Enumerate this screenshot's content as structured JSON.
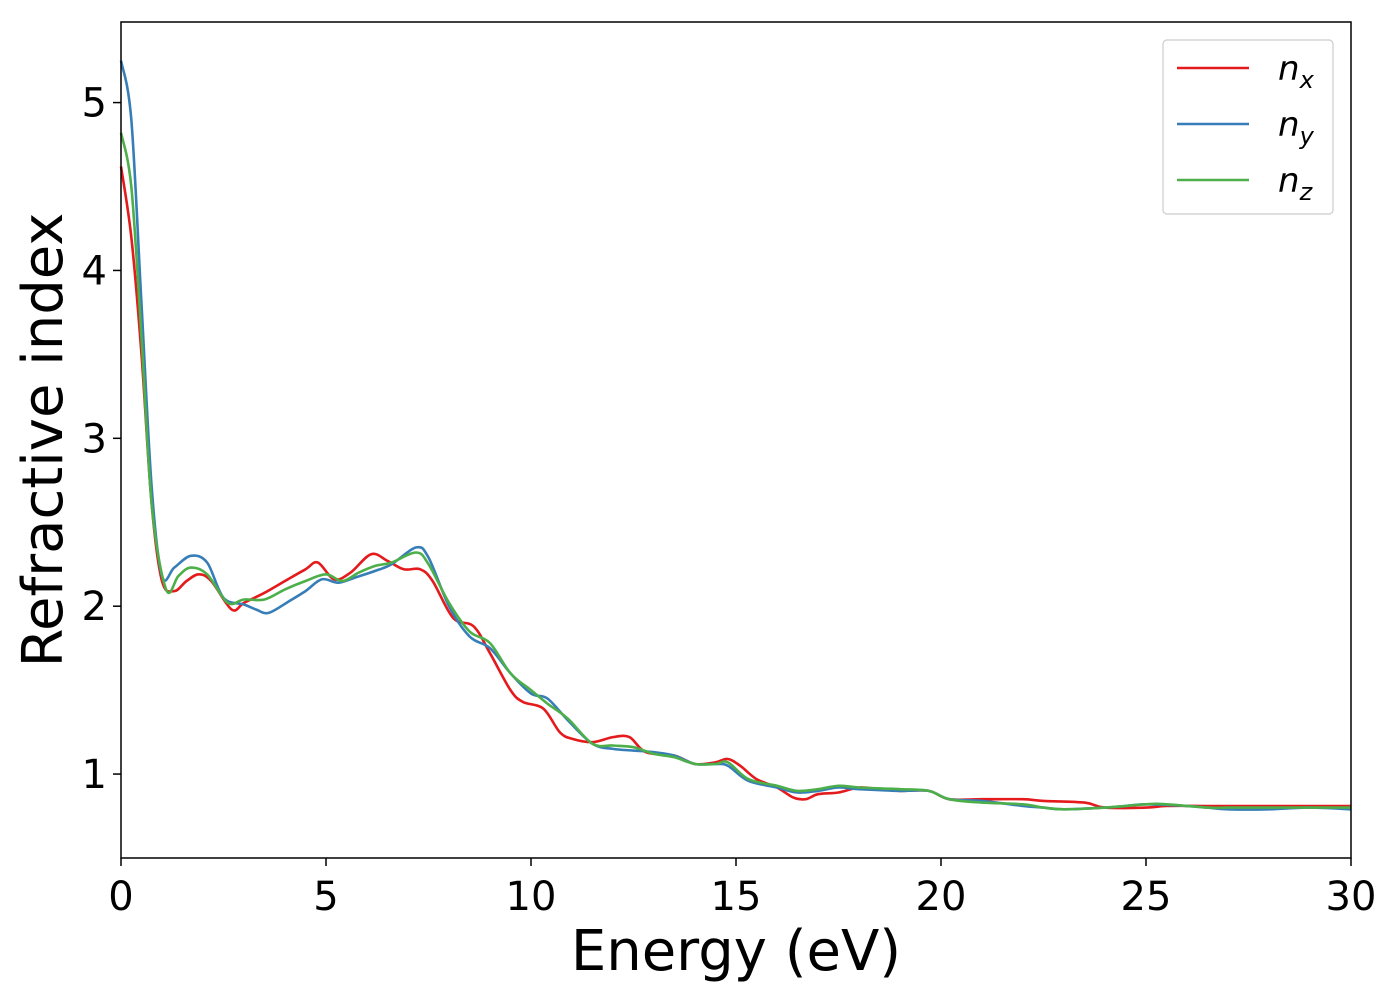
{
  "chart_data": {
    "type": "line",
    "xlabel": "Energy (eV)",
    "ylabel": "Refractive index",
    "xlim": [
      0,
      30
    ],
    "ylim": [
      0.5,
      5.48
    ],
    "xticks": [
      0,
      5,
      10,
      15,
      20,
      25,
      30
    ],
    "yticks": [
      1,
      2,
      3,
      4,
      5
    ],
    "grid": false,
    "legend_position": "top-right",
    "series": [
      {
        "name": "n_x",
        "label_main": "n",
        "label_sub": "x",
        "color": "#e41a1c",
        "points": [
          [
            0,
            4.62
          ],
          [
            0.25,
            4.2
          ],
          [
            0.5,
            3.5
          ],
          [
            0.75,
            2.6
          ],
          [
            1,
            2.15
          ],
          [
            1.3,
            2.09
          ],
          [
            1.6,
            2.15
          ],
          [
            1.9,
            2.19
          ],
          [
            2.2,
            2.15
          ],
          [
            2.7,
            1.98
          ],
          [
            3,
            2.02
          ],
          [
            3.5,
            2.08
          ],
          [
            4,
            2.15
          ],
          [
            4.5,
            2.22
          ],
          [
            4.8,
            2.26
          ],
          [
            5.2,
            2.16
          ],
          [
            5.6,
            2.2
          ],
          [
            6.1,
            2.31
          ],
          [
            6.5,
            2.27
          ],
          [
            6.9,
            2.22
          ],
          [
            7.3,
            2.22
          ],
          [
            7.6,
            2.15
          ],
          [
            8.1,
            1.93
          ],
          [
            8.6,
            1.88
          ],
          [
            9,
            1.72
          ],
          [
            9.5,
            1.5
          ],
          [
            9.8,
            1.43
          ],
          [
            10.3,
            1.39
          ],
          [
            10.7,
            1.25
          ],
          [
            11,
            1.21
          ],
          [
            11.5,
            1.19
          ],
          [
            12,
            1.22
          ],
          [
            12.4,
            1.22
          ],
          [
            12.8,
            1.13
          ],
          [
            13.5,
            1.11
          ],
          [
            14,
            1.06
          ],
          [
            14.5,
            1.07
          ],
          [
            14.8,
            1.09
          ],
          [
            15.1,
            1.05
          ],
          [
            15.5,
            0.97
          ],
          [
            16,
            0.92
          ],
          [
            16.4,
            0.86
          ],
          [
            16.7,
            0.85
          ],
          [
            17,
            0.88
          ],
          [
            17.5,
            0.89
          ],
          [
            18,
            0.92
          ],
          [
            18.5,
            0.91
          ],
          [
            19,
            0.9
          ],
          [
            19.7,
            0.9
          ],
          [
            20.2,
            0.85
          ],
          [
            21,
            0.85
          ],
          [
            22,
            0.85
          ],
          [
            22.5,
            0.84
          ],
          [
            23.5,
            0.83
          ],
          [
            24,
            0.8
          ],
          [
            25,
            0.8
          ],
          [
            25.5,
            0.81
          ],
          [
            26.5,
            0.81
          ],
          [
            27,
            0.81
          ],
          [
            28,
            0.81
          ],
          [
            29,
            0.81
          ],
          [
            30,
            0.81
          ]
        ]
      },
      {
        "name": "n_y",
        "label_main": "n",
        "label_sub": "y",
        "color": "#377eb8",
        "points": [
          [
            0,
            5.25
          ],
          [
            0.25,
            4.9
          ],
          [
            0.5,
            3.8
          ],
          [
            0.75,
            2.7
          ],
          [
            1,
            2.18
          ],
          [
            1.3,
            2.23
          ],
          [
            1.7,
            2.3
          ],
          [
            2.1,
            2.26
          ],
          [
            2.5,
            2.05
          ],
          [
            3,
            2.01
          ],
          [
            3.3,
            1.98
          ],
          [
            3.6,
            1.96
          ],
          [
            4.1,
            2.03
          ],
          [
            4.5,
            2.09
          ],
          [
            4.9,
            2.16
          ],
          [
            5.3,
            2.14
          ],
          [
            5.7,
            2.17
          ],
          [
            6.2,
            2.21
          ],
          [
            6.6,
            2.25
          ],
          [
            7.2,
            2.35
          ],
          [
            7.5,
            2.29
          ],
          [
            8,
            2.0
          ],
          [
            8.5,
            1.82
          ],
          [
            9,
            1.75
          ],
          [
            9.5,
            1.6
          ],
          [
            10,
            1.48
          ],
          [
            10.4,
            1.45
          ],
          [
            10.9,
            1.32
          ],
          [
            11.5,
            1.18
          ],
          [
            12,
            1.15
          ],
          [
            12.5,
            1.14
          ],
          [
            13,
            1.13
          ],
          [
            13.5,
            1.11
          ],
          [
            14,
            1.06
          ],
          [
            14.5,
            1.06
          ],
          [
            14.8,
            1.05
          ],
          [
            15.3,
            0.96
          ],
          [
            16,
            0.92
          ],
          [
            16.5,
            0.89
          ],
          [
            17,
            0.9
          ],
          [
            17.5,
            0.92
          ],
          [
            18,
            0.91
          ],
          [
            19,
            0.9
          ],
          [
            19.7,
            0.9
          ],
          [
            20.2,
            0.85
          ],
          [
            21,
            0.84
          ],
          [
            22,
            0.81
          ],
          [
            22.5,
            0.8
          ],
          [
            23,
            0.79
          ],
          [
            24,
            0.8
          ],
          [
            24.5,
            0.81
          ],
          [
            25,
            0.82
          ],
          [
            26,
            0.81
          ],
          [
            26.5,
            0.8
          ],
          [
            27,
            0.79
          ],
          [
            28,
            0.79
          ],
          [
            29,
            0.8
          ],
          [
            30,
            0.79
          ]
        ]
      },
      {
        "name": "n_z",
        "label_main": "n",
        "label_sub": "z",
        "color": "#4daf4a",
        "points": [
          [
            0,
            4.82
          ],
          [
            0.25,
            4.5
          ],
          [
            0.5,
            3.6
          ],
          [
            0.75,
            2.6
          ],
          [
            1.1,
            2.1
          ],
          [
            1.4,
            2.18
          ],
          [
            1.7,
            2.23
          ],
          [
            2.1,
            2.19
          ],
          [
            2.6,
            2.02
          ],
          [
            3,
            2.04
          ],
          [
            3.5,
            2.04
          ],
          [
            4,
            2.1
          ],
          [
            4.5,
            2.15
          ],
          [
            5,
            2.19
          ],
          [
            5.4,
            2.15
          ],
          [
            5.8,
            2.2
          ],
          [
            6.2,
            2.24
          ],
          [
            6.6,
            2.26
          ],
          [
            7.2,
            2.32
          ],
          [
            7.5,
            2.25
          ],
          [
            8,
            2.02
          ],
          [
            8.5,
            1.85
          ],
          [
            9,
            1.78
          ],
          [
            9.5,
            1.6
          ],
          [
            10,
            1.5
          ],
          [
            10.4,
            1.42
          ],
          [
            10.9,
            1.33
          ],
          [
            11.5,
            1.18
          ],
          [
            12,
            1.17
          ],
          [
            12.5,
            1.16
          ],
          [
            13,
            1.12
          ],
          [
            13.5,
            1.1
          ],
          [
            14,
            1.06
          ],
          [
            14.5,
            1.06
          ],
          [
            14.8,
            1.07
          ],
          [
            15.3,
            0.97
          ],
          [
            16,
            0.93
          ],
          [
            16.5,
            0.9
          ],
          [
            17,
            0.91
          ],
          [
            17.5,
            0.93
          ],
          [
            18,
            0.92
          ],
          [
            19,
            0.91
          ],
          [
            19.7,
            0.9
          ],
          [
            20.2,
            0.85
          ],
          [
            21,
            0.83
          ],
          [
            22,
            0.82
          ],
          [
            22.5,
            0.8
          ],
          [
            23,
            0.79
          ],
          [
            24,
            0.8
          ],
          [
            25,
            0.82
          ],
          [
            25.5,
            0.82
          ],
          [
            26.5,
            0.8
          ],
          [
            27,
            0.8
          ],
          [
            28,
            0.8
          ],
          [
            29,
            0.8
          ],
          [
            30,
            0.8
          ]
        ]
      }
    ]
  }
}
